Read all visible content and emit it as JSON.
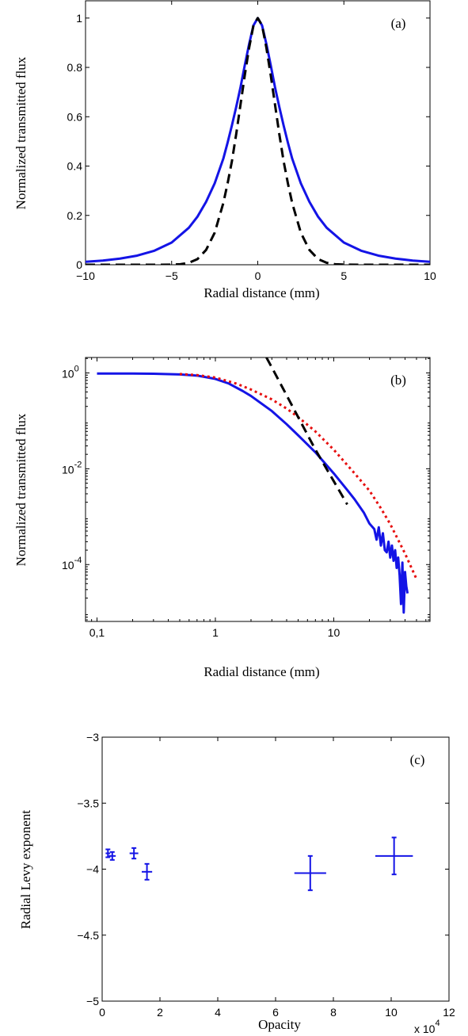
{
  "chart_data": [
    {
      "panel_label": "(a)",
      "type": "line",
      "xlabel": "Radial distance (mm)",
      "ylabel": "Normalized transmitted flux",
      "xlim": [
        -10,
        10
      ],
      "ylim": [
        0,
        1.07
      ],
      "xticks": [
        -10,
        -5,
        0,
        5,
        10
      ],
      "xtick_labels": [
        "−10",
        "−5",
        "0",
        "5",
        "10"
      ],
      "yticks": [
        0,
        0.2,
        0.4,
        0.6,
        0.8,
        1
      ],
      "ytick_labels": [
        "0",
        "0.2",
        "0.4",
        "0.6",
        "0.8",
        "1"
      ],
      "grid": false,
      "series": [
        {
          "style": "solid",
          "color": "#1414e6",
          "x": [
            -10,
            -9,
            -8,
            -7,
            -6,
            -5,
            -4,
            -3.5,
            -3,
            -2.5,
            -2,
            -1.75,
            -1.5,
            -1.25,
            -1,
            -0.75,
            -0.5,
            -0.25,
            0,
            0.25,
            0.5,
            0.75,
            1,
            1.25,
            1.5,
            1.75,
            2,
            2.5,
            3,
            3.5,
            4,
            5,
            6,
            7,
            8,
            9,
            10
          ],
          "y": [
            0.012,
            0.017,
            0.025,
            0.037,
            0.057,
            0.09,
            0.15,
            0.195,
            0.255,
            0.33,
            0.43,
            0.495,
            0.565,
            0.64,
            0.72,
            0.81,
            0.895,
            0.97,
            1,
            0.97,
            0.895,
            0.81,
            0.72,
            0.64,
            0.565,
            0.495,
            0.43,
            0.33,
            0.255,
            0.195,
            0.15,
            0.09,
            0.057,
            0.037,
            0.025,
            0.017,
            0.012
          ]
        },
        {
          "style": "dashed",
          "color": "#000000",
          "x": [
            -10,
            -6,
            -5,
            -4.5,
            -4,
            -3.5,
            -3,
            -2.5,
            -2,
            -1.75,
            -1.5,
            -1.25,
            -1,
            -0.75,
            -0.5,
            -0.25,
            0,
            0.25,
            0.5,
            0.75,
            1,
            1.25,
            1.5,
            1.75,
            2,
            2.5,
            3,
            3.5,
            4,
            4.5,
            5,
            6,
            10
          ],
          "y": [
            0,
            0,
            0.0005,
            0.002,
            0.008,
            0.023,
            0.06,
            0.13,
            0.25,
            0.33,
            0.42,
            0.53,
            0.65,
            0.77,
            0.88,
            0.97,
            1,
            0.97,
            0.88,
            0.77,
            0.65,
            0.53,
            0.42,
            0.33,
            0.25,
            0.13,
            0.06,
            0.023,
            0.008,
            0.002,
            0.0005,
            0,
            0
          ]
        }
      ]
    },
    {
      "panel_label": "(b)",
      "type": "line",
      "xscale": "log",
      "yscale": "log",
      "xlabel": "Radial distance (mm)",
      "ylabel": "Normalized transmitted flux",
      "xlim": [
        0.08,
        65
      ],
      "ylim": [
        6.5e-06,
        2.1
      ],
      "xticks": [
        0.1,
        1,
        10
      ],
      "xtick_labels": [
        "0,1",
        "1",
        "10"
      ],
      "yticks": [
        0.0001,
        0.01,
        1
      ],
      "ytick_labels": [
        {
          "base": "10",
          "exp": "-4"
        },
        {
          "base": "10",
          "exp": "-2"
        },
        {
          "base": "10",
          "exp": "0"
        }
      ],
      "grid": false,
      "series": [
        {
          "style": "solid",
          "color": "#1414e6",
          "x": [
            0.1,
            0.2,
            0.3,
            0.5,
            0.7,
            1,
            1.3,
            1.7,
            2,
            3,
            4,
            5,
            7,
            10,
            13,
            15,
            18,
            20,
            22,
            23,
            24,
            25,
            26,
            27,
            28,
            29,
            30,
            31,
            32,
            33,
            34,
            35,
            36,
            37,
            38,
            39,
            40,
            41,
            42
          ],
          "y": [
            0.97,
            0.97,
            0.96,
            0.93,
            0.88,
            0.75,
            0.6,
            0.42,
            0.33,
            0.16,
            0.085,
            0.05,
            0.022,
            0.008,
            0.0036,
            0.0023,
            0.0012,
            0.00072,
            0.00055,
            0.00033,
            0.0006,
            0.00025,
            0.00045,
            0.0002,
            0.00018,
            0.0003,
            0.00014,
            0.00025,
            0.00012,
            0.0002,
            8.5e-05,
            0.00014,
            6e-05,
            1.5e-05,
            0.00011,
            1e-05,
            7e-05,
            3.5e-05,
            2.5e-05
          ]
        },
        {
          "style": "dotted",
          "color": "#e60f0f",
          "x": [
            0.5,
            0.7,
            1,
            1.5,
            2,
            3,
            4,
            5,
            7,
            10,
            15,
            20,
            25,
            30,
            40,
            50
          ],
          "y": [
            0.95,
            0.9,
            0.8,
            0.6,
            0.45,
            0.28,
            0.18,
            0.12,
            0.06,
            0.025,
            0.008,
            0.0035,
            0.0015,
            0.0007,
            0.00017,
            5e-05
          ]
        },
        {
          "style": "dashed",
          "color": "#000000",
          "x": [
            2.7,
            3,
            4,
            5,
            7,
            10,
            13
          ],
          "y": [
            2.1,
            1.3,
            0.34,
            0.12,
            0.025,
            0.0055,
            0.0018
          ]
        }
      ]
    },
    {
      "panel_label": "(c)",
      "type": "scatter",
      "xlabel": "Opacity",
      "ylabel": "Radial Levy exponent",
      "x_multiplier": {
        "base": "x 10",
        "exp": "4"
      },
      "xlim": [
        0,
        12
      ],
      "ylim": [
        -5,
        -3
      ],
      "xticks": [
        0,
        2,
        4,
        6,
        8,
        10,
        12
      ],
      "xtick_labels": [
        "0",
        "2",
        "4",
        "6",
        "8",
        "10",
        "12"
      ],
      "yticks": [
        -5,
        -4.5,
        -4,
        -3.5,
        -3
      ],
      "ytick_labels": [
        "−5",
        "−4.5",
        "−4",
        "−3.5",
        "−3"
      ],
      "grid": false,
      "color": "#1414e6",
      "points": [
        {
          "x": 0.2,
          "y": -3.88,
          "xerr": 0.08,
          "yerr": 0.03
        },
        {
          "x": 0.35,
          "y": -3.9,
          "xerr": 0.12,
          "yerr": 0.03
        },
        {
          "x": 1.1,
          "y": -3.88,
          "xerr": 0.15,
          "yerr": 0.04
        },
        {
          "x": 1.55,
          "y": -4.02,
          "xerr": 0.18,
          "yerr": 0.06
        },
        {
          "x": 7.2,
          "y": -4.03,
          "xerr": 0.55,
          "yerr": 0.13
        },
        {
          "x": 10.1,
          "y": -3.9,
          "xerr": 0.65,
          "yerr": 0.14
        }
      ]
    }
  ]
}
